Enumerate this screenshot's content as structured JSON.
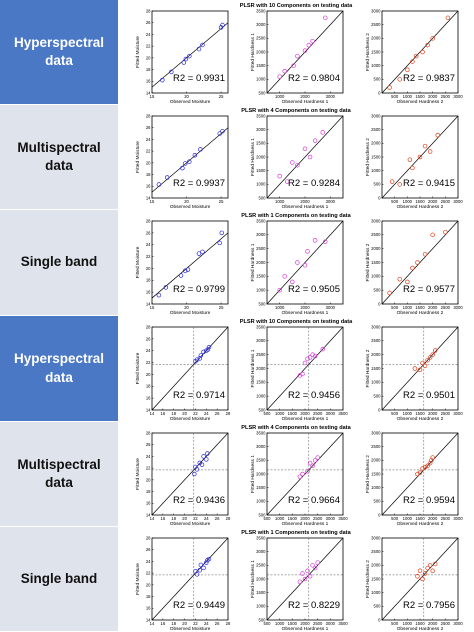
{
  "chart_data": [
    {
      "type": "scatter",
      "row_label": "Hyperspectral data",
      "title": "PLSR with 10 Components on testing data",
      "label_theme": "dark",
      "style": "plain",
      "panels": [
        {
          "xlabel": "Observed Moisture",
          "ylabel": "Fitted Moisture",
          "xlim": [
            15,
            26
          ],
          "ylim": [
            14,
            28
          ],
          "xticks": [
            15,
            20,
            25
          ],
          "yticks": [
            14,
            16,
            18,
            20,
            22,
            24,
            26,
            28
          ],
          "r2": "R2 = 0.9931",
          "color": "#2b2bd9",
          "x": [
            16.5,
            17.8,
            19.6,
            19.9,
            20.4,
            21.8,
            22.3,
            25.0,
            25.2
          ],
          "y": [
            16.2,
            17.6,
            19.2,
            19.8,
            20.3,
            21.5,
            22.2,
            25.2,
            25.6
          ]
        },
        {
          "xlabel": "Observed Hardness 1",
          "ylabel": "Fitted Hardness 1",
          "xlim": [
            500,
            3500
          ],
          "ylim": [
            500,
            3500
          ],
          "xticks": [
            1000,
            2000,
            3000
          ],
          "yticks": [
            500,
            1000,
            1500,
            2000,
            2500,
            3000,
            3500
          ],
          "r2": "R2 = 0.9804",
          "color": "#d93cd9",
          "x": [
            1000,
            1200,
            1550,
            1700,
            2000,
            2150,
            2300,
            2800
          ],
          "y": [
            1100,
            1300,
            1500,
            1850,
            2050,
            2250,
            2400,
            3250
          ]
        },
        {
          "xlabel": "Observed Hardness 2",
          "ylabel": "Fitted Hardness 2",
          "xlim": [
            0,
            3000
          ],
          "ylim": [
            0,
            3000
          ],
          "xticks": [
            500,
            1000,
            1500,
            2000,
            2500,
            3000
          ],
          "yticks": [
            0,
            500,
            1000,
            1500,
            2000,
            2500,
            3000
          ],
          "r2": "R2 = 0.9837",
          "color": "#e0401b",
          "x": [
            300,
            700,
            1000,
            1200,
            1350,
            1600,
            1800,
            2000,
            2600
          ],
          "y": [
            200,
            500,
            850,
            1150,
            1350,
            1500,
            1750,
            2000,
            2750
          ]
        }
      ]
    },
    {
      "type": "scatter",
      "row_label": "Multispectral data",
      "title": "PLSR with 4 Components on testing data",
      "label_theme": "light",
      "style": "plain",
      "panels": [
        {
          "xlabel": "Observed Moisture",
          "ylabel": "Fitted Moisture",
          "xlim": [
            15,
            26
          ],
          "ylim": [
            14,
            28
          ],
          "xticks": [
            15,
            20,
            25
          ],
          "yticks": [
            14,
            16,
            18,
            20,
            22,
            24,
            26,
            28
          ],
          "r2": "R2 = 0.9937",
          "color": "#2b2bd9",
          "x": [
            16.0,
            17.2,
            19.4,
            19.8,
            20.4,
            21.2,
            22.0,
            24.8,
            25.2
          ],
          "y": [
            16.3,
            17.5,
            19.1,
            19.9,
            20.2,
            21.3,
            22.3,
            25.0,
            25.4
          ]
        },
        {
          "xlabel": "Observed Hardness 1",
          "ylabel": "Fitted Hardness 1",
          "xlim": [
            500,
            3500
          ],
          "ylim": [
            500,
            3500
          ],
          "xticks": [
            1000,
            2000,
            3000
          ],
          "yticks": [
            500,
            1000,
            1500,
            2000,
            2500,
            3000,
            3500
          ],
          "r2": "R2 = 0.9284",
          "color": "#d93cd9",
          "x": [
            1000,
            1300,
            1500,
            1700,
            2000,
            2200,
            2400,
            2700
          ],
          "y": [
            1300,
            1100,
            1800,
            1700,
            2300,
            2000,
            2600,
            2900
          ]
        },
        {
          "xlabel": "Observed Hardness 2",
          "ylabel": "Fitted Hardness 2",
          "xlim": [
            0,
            3000
          ],
          "ylim": [
            0,
            3000
          ],
          "xticks": [
            500,
            1000,
            1500,
            2000,
            2500,
            3000
          ],
          "yticks": [
            0,
            500,
            1000,
            1500,
            2000,
            2500,
            3000
          ],
          "r2": "R2 = 0.9415",
          "color": "#e0401b",
          "x": [
            400,
            700,
            1100,
            1200,
            1500,
            1700,
            1900,
            2200
          ],
          "y": [
            600,
            500,
            1400,
            1100,
            1500,
            1900,
            1700,
            2300
          ]
        }
      ]
    },
    {
      "type": "scatter",
      "row_label": "Single band",
      "title": "PLSR with 1 Components on testing data",
      "label_theme": "light",
      "style": "plain",
      "panels": [
        {
          "xlabel": "Observed Moisture",
          "ylabel": "Fitted Moisture",
          "xlim": [
            15,
            26
          ],
          "ylim": [
            14,
            28
          ],
          "xticks": [
            15,
            20,
            25
          ],
          "yticks": [
            14,
            16,
            18,
            20,
            22,
            24,
            26,
            28
          ],
          "r2": "R2 = 0.9799",
          "color": "#2b2bd9",
          "x": [
            16.0,
            17.0,
            19.2,
            19.8,
            20.2,
            21.8,
            22.3,
            24.8,
            25.1
          ],
          "y": [
            15.5,
            16.8,
            18.8,
            19.6,
            19.8,
            22.5,
            22.8,
            24.3,
            26.0
          ]
        },
        {
          "xlabel": "Observed Hardness 1",
          "ylabel": "Fitted Hardness 1",
          "xlim": [
            500,
            3500
          ],
          "ylim": [
            500,
            3500
          ],
          "xticks": [
            1000,
            2000,
            3000
          ],
          "yticks": [
            500,
            1000,
            1500,
            2000,
            2500,
            3000,
            3500
          ],
          "r2": "R2 = 0.9505",
          "color": "#d93cd9",
          "x": [
            1000,
            1200,
            1500,
            1700,
            2000,
            2100,
            2400,
            2800
          ],
          "y": [
            1000,
            1500,
            1300,
            2000,
            1900,
            2400,
            2800,
            2750
          ]
        },
        {
          "xlabel": "Observed Hardness 2",
          "ylabel": "Fitted Hardness 2",
          "xlim": [
            0,
            3000
          ],
          "ylim": [
            0,
            3000
          ],
          "xticks": [
            500,
            1000,
            1500,
            2000,
            2500,
            3000
          ],
          "yticks": [
            0,
            500,
            1000,
            1500,
            2000,
            2500,
            3000
          ],
          "r2": "R2 = 0.9577",
          "color": "#e0401b",
          "x": [
            300,
            700,
            1000,
            1200,
            1400,
            1700,
            2000,
            2500
          ],
          "y": [
            400,
            900,
            800,
            1300,
            1500,
            1800,
            2500,
            2600
          ]
        }
      ]
    },
    {
      "type": "scatter",
      "row_label": "Hyperspectral data",
      "title": "PLSR with 10 Components on testing data",
      "label_theme": "dark",
      "style": "dashed",
      "panels": [
        {
          "xlabel": "Observed Moisture",
          "ylabel": "Fitted Moisture",
          "xlim": [
            14,
            28
          ],
          "ylim": [
            14,
            28
          ],
          "xticks": [
            14,
            16,
            18,
            20,
            22,
            24,
            26,
            28
          ],
          "yticks": [
            14,
            16,
            18,
            20,
            22,
            24,
            26,
            28
          ],
          "r2": "R2 = 0.9714",
          "color": "#2b2bd9",
          "x": [
            22.0,
            22.3,
            22.8,
            23.0,
            23.5,
            24.0,
            24.3,
            24.5
          ],
          "y": [
            22.2,
            22.5,
            22.7,
            23.2,
            23.8,
            24.0,
            24.2,
            24.6
          ]
        },
        {
          "xlabel": "Observed Hardness 1",
          "ylabel": "Fitted Hardness 1",
          "xlim": [
            500,
            3500
          ],
          "ylim": [
            500,
            3500
          ],
          "xticks": [
            500,
            1000,
            1500,
            2000,
            2500,
            3000,
            3500
          ],
          "yticks": [
            500,
            1000,
            1500,
            2000,
            2500,
            3000,
            3500
          ],
          "r2": "R2 = 0.9456",
          "color": "#d93cd9",
          "x": [
            1800,
            1900,
            2000,
            2100,
            2200,
            2300,
            2400,
            2700
          ],
          "y": [
            1750,
            1800,
            2200,
            2350,
            2400,
            2500,
            2450,
            2700
          ]
        },
        {
          "xlabel": "Observed Hardness 2",
          "ylabel": "Fitted Hardness 2",
          "xlim": [
            0,
            3000
          ],
          "ylim": [
            0,
            3000
          ],
          "xticks": [
            500,
            1000,
            1500,
            2000,
            2500,
            3000
          ],
          "yticks": [
            0,
            500,
            1000,
            1500,
            2000,
            2500,
            3000
          ],
          "r2": "R2 = 0.9501",
          "color": "#e0401b",
          "x": [
            1300,
            1500,
            1600,
            1700,
            1800,
            1900,
            2000,
            2100
          ],
          "y": [
            1500,
            1450,
            1700,
            1600,
            1800,
            1900,
            2000,
            2150
          ]
        }
      ]
    },
    {
      "type": "scatter",
      "row_label": "Multispectral data",
      "title": "PLSR with 4 Components on testing data",
      "label_theme": "light",
      "style": "dashed",
      "panels": [
        {
          "xlabel": "Observed Moisture",
          "ylabel": "Fitted Moisture",
          "xlim": [
            14,
            28
          ],
          "ylim": [
            14,
            28
          ],
          "xticks": [
            14,
            16,
            18,
            20,
            22,
            24,
            26,
            28
          ],
          "yticks": [
            14,
            16,
            18,
            20,
            22,
            24,
            26,
            28
          ],
          "r2": "R2 = 0.9436",
          "color": "#2b2bd9",
          "x": [
            21.8,
            22.0,
            22.3,
            22.8,
            23.2,
            23.5,
            24.0,
            24.2
          ],
          "y": [
            21.0,
            22.2,
            21.8,
            22.9,
            22.6,
            24.0,
            23.5,
            24.5
          ]
        },
        {
          "xlabel": "Observed Hardness 1",
          "ylabel": "Fitted Hardness 1",
          "xlim": [
            500,
            3500
          ],
          "ylim": [
            500,
            3500
          ],
          "xticks": [
            500,
            1000,
            1500,
            2000,
            2500,
            3000,
            3500
          ],
          "yticks": [
            500,
            1000,
            1500,
            2000,
            2500,
            3000,
            3500
          ],
          "r2": "R2 = 0.9664",
          "color": "#d93cd9",
          "x": [
            1800,
            1900,
            2100,
            2200,
            2300,
            2400,
            2500
          ],
          "y": [
            1900,
            2000,
            2100,
            2400,
            2300,
            2500,
            2600
          ]
        },
        {
          "xlabel": "Observed Hardness 2",
          "ylabel": "Fitted Hardness 2",
          "xlim": [
            0,
            3000
          ],
          "ylim": [
            0,
            3000
          ],
          "xticks": [
            500,
            1000,
            1500,
            2000,
            2500,
            3000
          ],
          "yticks": [
            0,
            500,
            1000,
            1500,
            2000,
            2500,
            3000
          ],
          "r2": "R2 = 0.9594",
          "color": "#e0401b",
          "x": [
            1400,
            1500,
            1600,
            1700,
            1800,
            1900,
            1950,
            2000
          ],
          "y": [
            1500,
            1550,
            1700,
            1750,
            1800,
            1900,
            2000,
            2100
          ]
        }
      ]
    },
    {
      "type": "scatter",
      "row_label": "Single band",
      "title": "PLSR with 1 Components on testing data",
      "label_theme": "light",
      "style": "dashed",
      "panels": [
        {
          "xlabel": "Observed Moisture",
          "ylabel": "Fitted Moisture",
          "xlim": [
            14,
            28
          ],
          "ylim": [
            14,
            28
          ],
          "xticks": [
            14,
            16,
            18,
            20,
            22,
            24,
            26,
            28
          ],
          "yticks": [
            14,
            16,
            18,
            20,
            22,
            24,
            26,
            28
          ],
          "r2": "R2 = 0.9449",
          "color": "#2b2bd9",
          "x": [
            22.0,
            22.3,
            22.8,
            23.0,
            23.5,
            24.0,
            24.2,
            24.5
          ],
          "y": [
            22.3,
            21.8,
            22.5,
            23.4,
            22.9,
            23.8,
            24.2,
            24.4
          ]
        },
        {
          "xlabel": "Observed Hardness 1",
          "ylabel": "Fitted Hardness 1",
          "xlim": [
            500,
            3500
          ],
          "ylim": [
            500,
            3500
          ],
          "xticks": [
            500,
            1000,
            1500,
            2000,
            2500,
            3000,
            3500
          ],
          "yticks": [
            500,
            1000,
            1500,
            2000,
            2500,
            3000,
            3500
          ],
          "r2": "R2 = 0.8229",
          "color": "#d93cd9",
          "x": [
            1800,
            1900,
            2000,
            2100,
            2200,
            2300,
            2400,
            2500
          ],
          "y": [
            1900,
            2200,
            2000,
            2300,
            2100,
            2500,
            2400,
            2600
          ]
        },
        {
          "xlabel": "Observed Hardness 2",
          "ylabel": "Fitted Hardness 2",
          "xlim": [
            0,
            3000
          ],
          "ylim": [
            0,
            3000
          ],
          "xticks": [
            500,
            1000,
            1500,
            2000,
            2500,
            3000
          ],
          "yticks": [
            0,
            500,
            1000,
            1500,
            2000,
            2500,
            3000
          ],
          "r2": "R2 = 0.7956",
          "color": "#e0401b",
          "x": [
            1400,
            1500,
            1600,
            1700,
            1800,
            1900,
            2000,
            2100
          ],
          "y": [
            1600,
            1800,
            1500,
            1700,
            1900,
            2000,
            1800,
            2050
          ]
        }
      ]
    }
  ]
}
